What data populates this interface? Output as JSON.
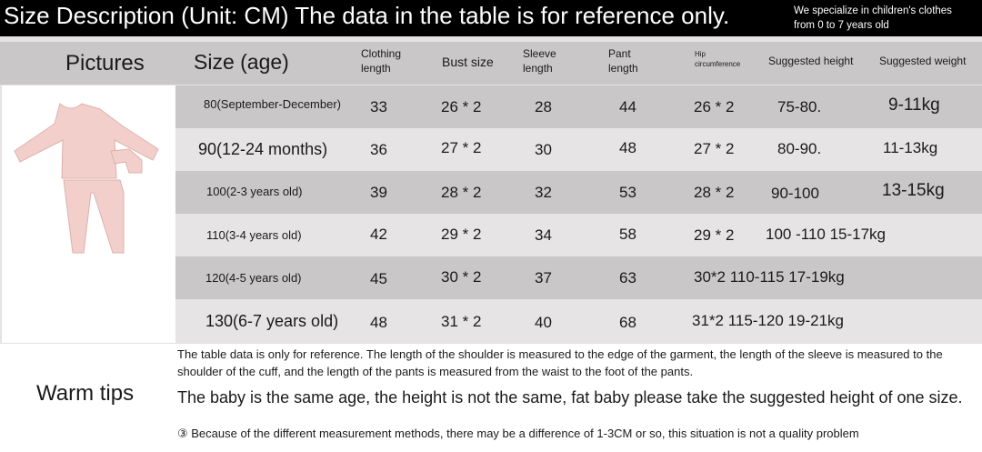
{
  "banner": {
    "title": "Size Description (Unit: CM) The data in the table is for reference only.",
    "slogan_line1": "We specialize in children's clothes",
    "slogan_line2": "from 0 to 7 years old"
  },
  "table": {
    "headers": {
      "pictures": "Pictures",
      "size": "Size (age)",
      "clothing_length": "Clothing length",
      "bust": "Bust size",
      "sleeve": "Sleeve length",
      "pant": "Pant length",
      "hip": "Hip circumference",
      "height": "Suggested height",
      "weight": "Suggested weight"
    },
    "rows": [
      {
        "size": "80(September-December)",
        "clothing": "33",
        "bust": "26 * 2",
        "sleeve": "28",
        "pant": "44",
        "hip": "26 * 2",
        "height": "75-80.",
        "weight": "9-11kg"
      },
      {
        "size": "90(12-24 months)",
        "clothing": "36",
        "bust": "27 * 2",
        "sleeve": "30",
        "pant": "48",
        "hip": "27 * 2",
        "height": "80-90.",
        "weight": "11-13kg"
      },
      {
        "size": "100(2-3 years old)",
        "clothing": "39",
        "bust": "28 * 2",
        "sleeve": "32",
        "pant": "53",
        "hip": "28 * 2",
        "height": "90-100",
        "weight": "13-15kg"
      },
      {
        "size": "110(3-4 years old)",
        "clothing": "42",
        "bust": "29 * 2",
        "sleeve": "34",
        "pant": "58",
        "hip": "29 * 2",
        "height": "100 -110 15-17kg",
        "weight": ""
      },
      {
        "size": "120(4-5 years old)",
        "clothing": "45",
        "bust": "30 * 2",
        "sleeve": "37",
        "pant": "63",
        "hip": "30*2 110-115 17-19kg",
        "height": "",
        "weight": ""
      },
      {
        "size": "130(6-7 years old)",
        "clothing": "48",
        "bust": "31 * 2",
        "sleeve": "40",
        "pant": "68",
        "hip": "31*2 115-120 19-21kg",
        "height": "",
        "weight": ""
      }
    ]
  },
  "product_image": {
    "icon": "pink-pajama-set-icon",
    "color": "#f3cfcb"
  },
  "tips": {
    "label": "Warm tips",
    "note1": "The table data is only for reference. The length of the shoulder is measured to the edge of the garment, the length of the sleeve is measured to the shoulder of the cuff, and the length of the pants is measured from the waist to the foot of the pants.",
    "note2": "The baby is the same age, the height is not the same, fat baby please take the suggested height of one size.",
    "note3": "③ Because of the different measurement methods, there may be a difference of 1-3CM or so, this situation is not a quality problem"
  }
}
